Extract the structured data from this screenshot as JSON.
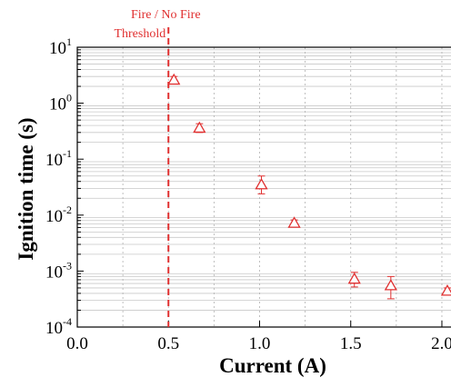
{
  "chart_data": {
    "type": "scatter",
    "xlabel": "Current (A)",
    "ylabel": "Ignition time (s)",
    "xlim": [
      0.0,
      2.05
    ],
    "ylim": [
      0.0001,
      10
    ],
    "yscale": "log",
    "x_ticks": [
      {
        "value": 0.0,
        "label": "0.0"
      },
      {
        "value": 0.5,
        "label": "0.5"
      },
      {
        "value": 1.0,
        "label": "1.0"
      },
      {
        "value": 1.5,
        "label": "1.5"
      },
      {
        "value": 2.0,
        "label": "2.0"
      }
    ],
    "y_ticks": [
      {
        "exp": 1,
        "base": "10",
        "power": "1"
      },
      {
        "exp": 0,
        "base": "10",
        "power": "0"
      },
      {
        "exp": -1,
        "base": "10",
        "power": "-1"
      },
      {
        "exp": -2,
        "base": "10",
        "power": "-2"
      },
      {
        "exp": -3,
        "base": "10",
        "power": "-3"
      },
      {
        "exp": -4,
        "base": "10",
        "power": "-4"
      }
    ],
    "grid": true,
    "marker": "open-triangle",
    "color": "#e03030",
    "points": [
      {
        "x": 0.53,
        "y": 2.6,
        "y_low": 2.2,
        "y_high": 3.0
      },
      {
        "x": 0.67,
        "y": 0.36,
        "y_low": 0.3,
        "y_high": 0.43
      },
      {
        "x": 1.01,
        "y": 0.035,
        "y_low": 0.024,
        "y_high": 0.05
      },
      {
        "x": 1.19,
        "y": 0.0072,
        "y_low": 0.0062,
        "y_high": 0.0082
      },
      {
        "x": 1.52,
        "y": 0.00072,
        "y_low": 0.00052,
        "y_high": 0.00095
      },
      {
        "x": 1.72,
        "y": 0.00055,
        "y_low": 0.00032,
        "y_high": 0.0008
      },
      {
        "x": 2.03,
        "y": 0.00044,
        "y_low": 0.00039,
        "y_high": 0.0005
      }
    ],
    "threshold": {
      "x": 0.5,
      "label_line1": "Fire / No Fire",
      "label_line2": "Threshold"
    }
  }
}
